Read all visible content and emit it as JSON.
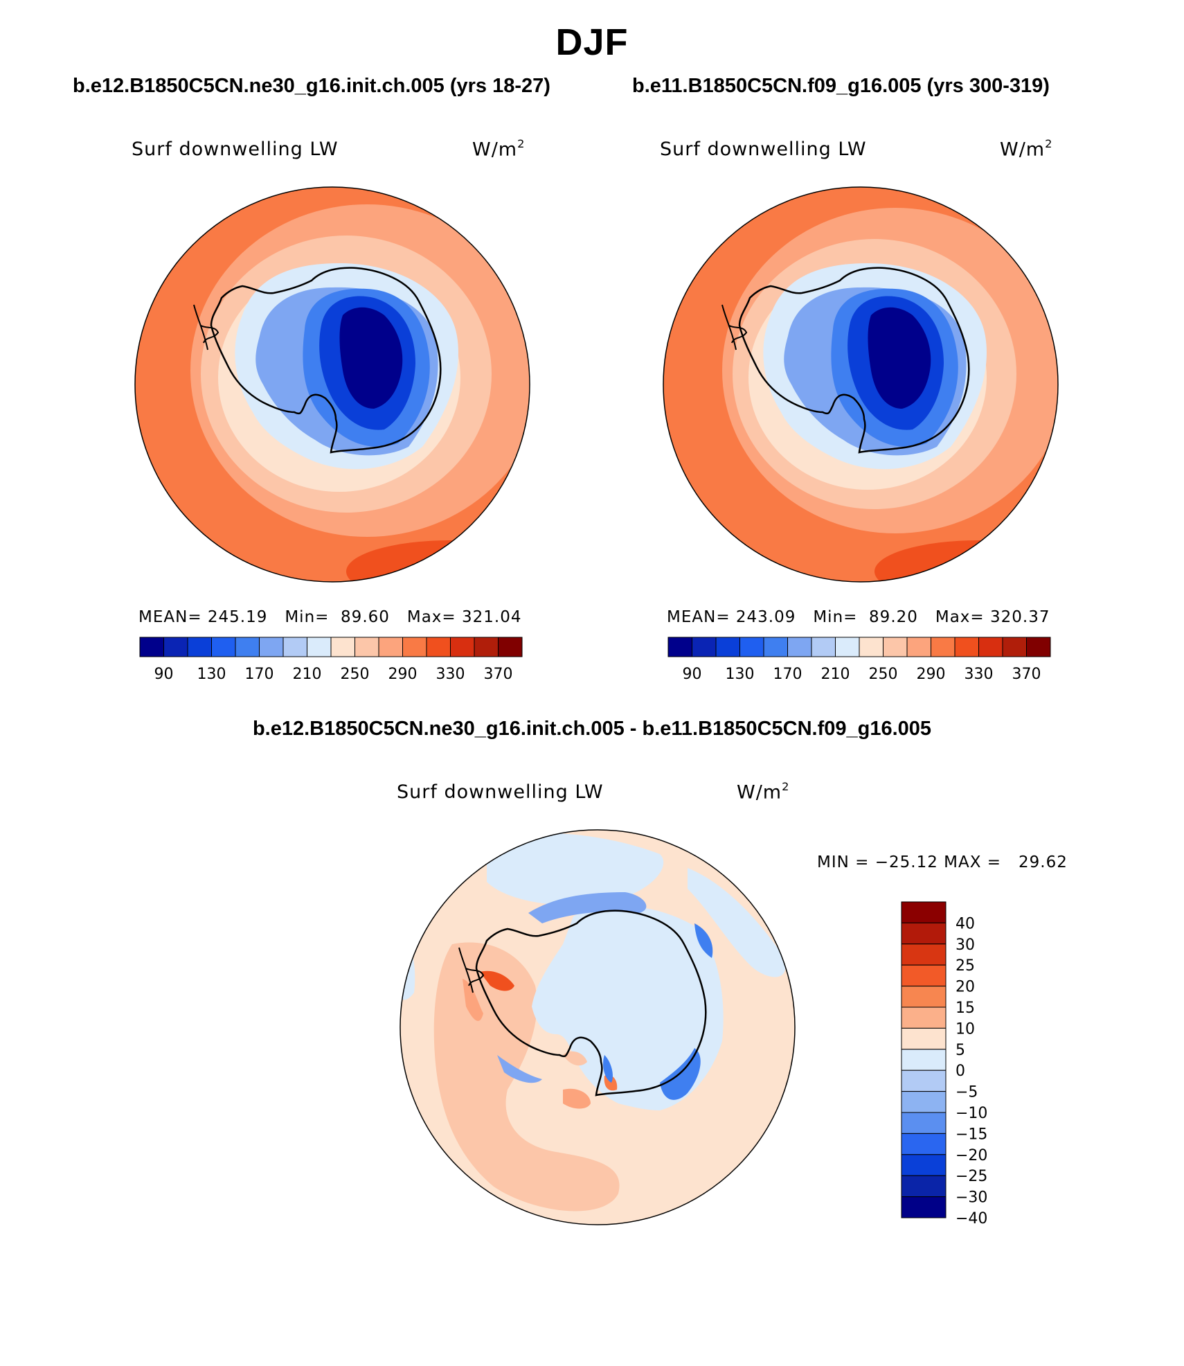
{
  "season": "DJF",
  "panels": [
    {
      "case_title": "b.e12.B1850C5CN.ne30_g16.init.ch.005 (yrs 18-27)",
      "variable": "Surf downwelling LW",
      "units_base": "W/m",
      "units_exp": "2",
      "stats": {
        "mean_label": "MEAN=",
        "mean": "245.19",
        "min_label": "Min=",
        "min": "89.60",
        "max_label": "Max=",
        "max": "321.04"
      }
    },
    {
      "case_title": "b.e11.B1850C5CN.f09_g16.005 (yrs 300-319)",
      "variable": "Surf downwelling LW",
      "units_base": "W/m",
      "units_exp": "2",
      "stats": {
        "mean_label": "MEAN=",
        "mean": "243.09",
        "min_label": "Min=",
        "min": "89.20",
        "max_label": "Max=",
        "max": "320.37"
      }
    }
  ],
  "diff_panel": {
    "title": "b.e12.B1850C5CN.ne30_g16.init.ch.005 - b.e11.B1850C5CN.f09_g16.005",
    "variable": "Surf downwelling LW",
    "units_base": "W/m",
    "units_exp": "2",
    "minmax": "MIN = −25.12 MAX =   29.62"
  },
  "colorbar_abs": {
    "colors": [
      "#00008b",
      "#0a24b4",
      "#0a3fd8",
      "#1f5ff0",
      "#3f7ff0",
      "#7ea6f2",
      "#b2cbf5",
      "#daebfb",
      "#fde3cf",
      "#fcc6a9",
      "#fca47d",
      "#f97a45",
      "#f0501e",
      "#d82f10",
      "#b01e0a",
      "#800000"
    ],
    "tick_labels": [
      "90",
      "130",
      "170",
      "210",
      "250",
      "290",
      "330",
      "370"
    ]
  },
  "colorbar_diff": {
    "colors": [
      "#8b0000",
      "#b21a0a",
      "#d83612",
      "#f25a28",
      "#f78650",
      "#fbb08a",
      "#fde3cf",
      "#daebfb",
      "#b2cbf5",
      "#8db3f2",
      "#5b8ff0",
      "#2a66f0",
      "#0a40d8",
      "#0a24a8",
      "#000088"
    ],
    "tick_labels": [
      "40",
      "30",
      "25",
      "20",
      "15",
      "10",
      "5",
      "0",
      "−5",
      "−10",
      "−15",
      "−20",
      "−25",
      "−30",
      "−40"
    ]
  }
}
